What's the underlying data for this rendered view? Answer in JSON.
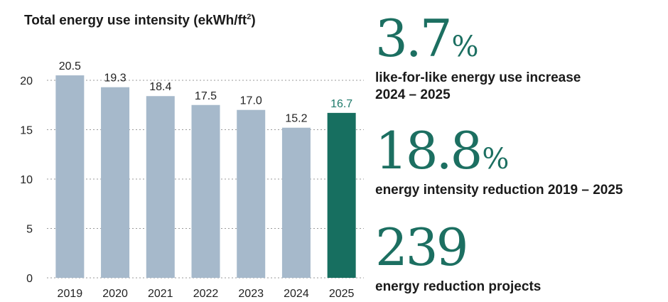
{
  "chart_data": {
    "type": "bar",
    "title": "Total energy use intensity (ekWh/ft",
    "title_superscript": "2",
    "title_suffix": ")",
    "categories": [
      "2019",
      "2020",
      "2021",
      "2022",
      "2023",
      "2024",
      "2025"
    ],
    "values": [
      20.5,
      19.3,
      18.4,
      17.5,
      17.0,
      15.2,
      16.7
    ],
    "value_labels": [
      "20.5",
      "19.3",
      "18.4",
      "17.5",
      "17.0",
      "15.2",
      "16.7"
    ],
    "ylim": [
      0,
      20
    ],
    "yticks": [
      0,
      5,
      10,
      15,
      20
    ],
    "grid": true,
    "highlight_index": 6,
    "colors": {
      "bar": "#a6b9cb",
      "highlight_bar": "#176f60",
      "highlight_label": "#1f7a6b",
      "grid": "#9a9a9a"
    }
  },
  "stats": [
    {
      "value": "3.7",
      "unit": "%",
      "label": "like-for-like energy use increase",
      "label2": "2024 – 2025"
    },
    {
      "value": "18.8",
      "unit": "%",
      "label": "energy intensity reduction 2019 – 2025",
      "label2": ""
    },
    {
      "value": "239",
      "unit": "",
      "label": "energy reduction projects",
      "label2": ""
    }
  ]
}
